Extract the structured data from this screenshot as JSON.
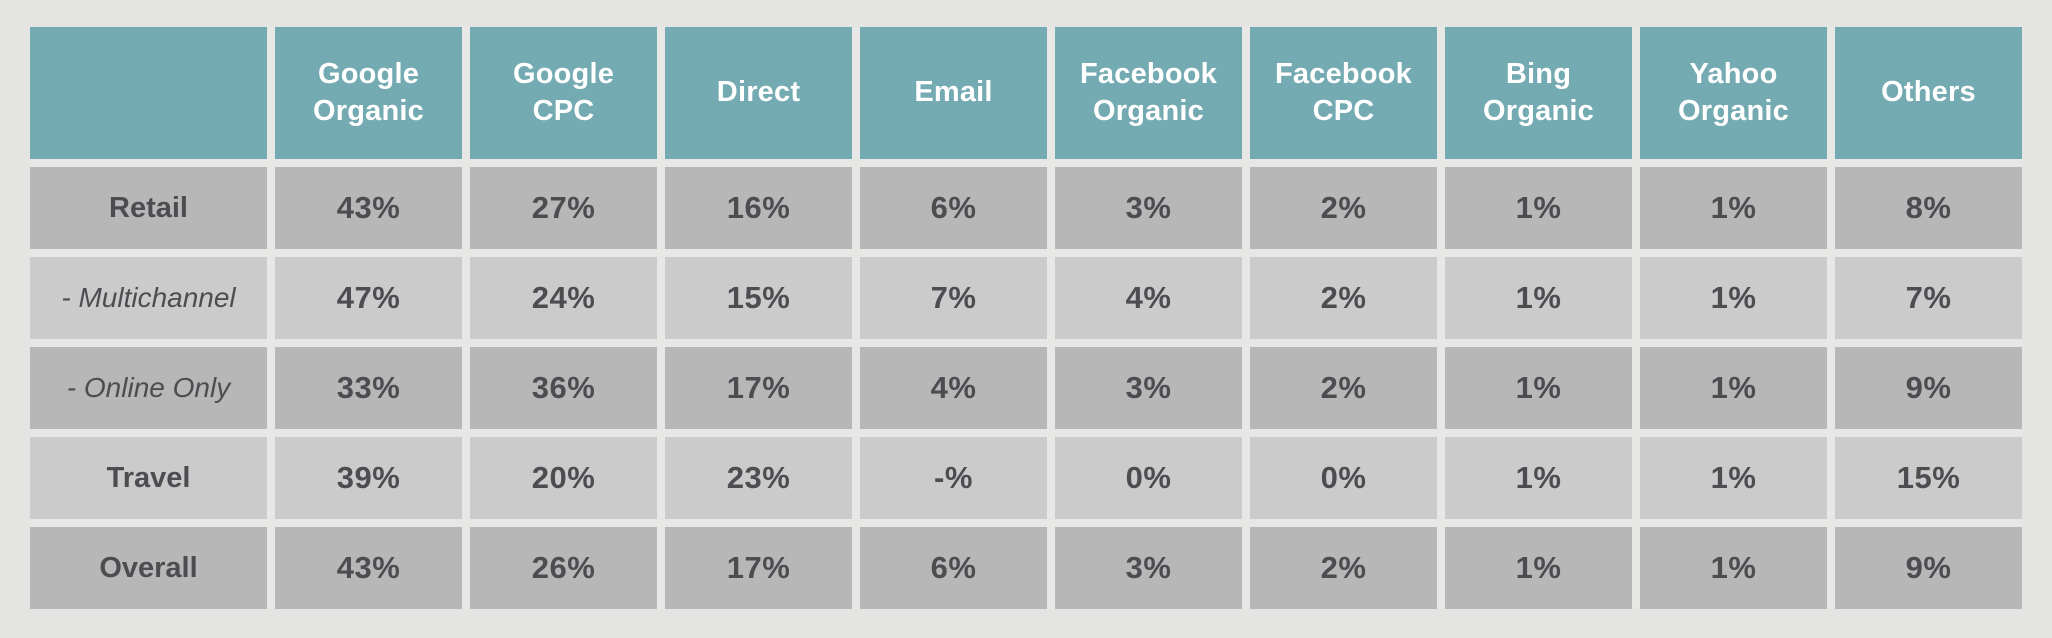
{
  "chart_data": {
    "type": "table",
    "title": "",
    "column_headers": [
      "Google Organic",
      "Google CPC",
      "Direct",
      "Email",
      "Facebook Organic",
      "Facebook CPC",
      "Bing Organic",
      "Yahoo Organic",
      "Others"
    ],
    "row_labels": [
      "Retail",
      "- Multichannel",
      "- Online Only",
      "Travel",
      "Overall"
    ],
    "values": [
      [
        "43%",
        "27%",
        "16%",
        "6%",
        "3%",
        "2%",
        "1%",
        "1%",
        "8%"
      ],
      [
        "47%",
        "24%",
        "15%",
        "7%",
        "4%",
        "2%",
        "1%",
        "1%",
        "7%"
      ],
      [
        "33%",
        "36%",
        "17%",
        "4%",
        "3%",
        "2%",
        "1%",
        "1%",
        "9%"
      ],
      [
        "39%",
        "20%",
        "23%",
        "-%",
        "0%",
        "0%",
        "1%",
        "1%",
        "15%"
      ],
      [
        "43%",
        "26%",
        "17%",
        "6%",
        "3%",
        "2%",
        "1%",
        "1%",
        "9%"
      ]
    ],
    "colors": {
      "header_bg": "#74aab1",
      "header_text": "#ffffff",
      "row_dark": "#b7b7b7",
      "row_light": "#cbcbcb",
      "cell_text": "#4c4d51",
      "page_bg": "#e4e5e2"
    }
  }
}
